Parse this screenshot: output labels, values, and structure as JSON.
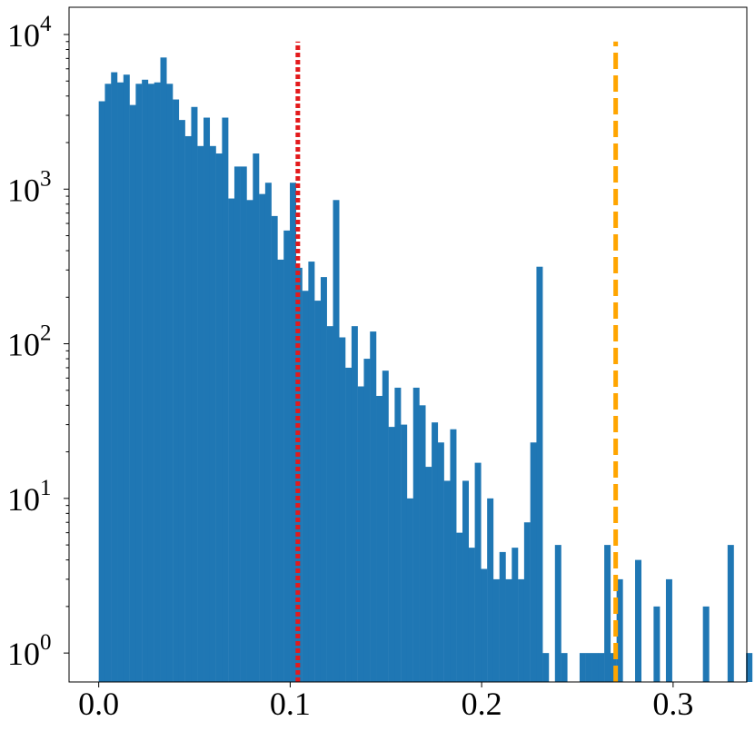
{
  "chart_data": {
    "type": "bar",
    "title": "",
    "xlabel": "",
    "ylabel": "",
    "yscale": "log",
    "ylim": [
      0.65,
      15000
    ],
    "xlim": [
      -0.0155,
      0.3385
    ],
    "grid": false,
    "bar_color": "#1f77b4",
    "bin_width": 0.00322,
    "x_ticks": [
      0.0,
      0.1,
      0.2,
      0.3
    ],
    "x_tick_labels": [
      "0.0",
      "0.1",
      "0.2",
      "0.3"
    ],
    "y_ticks": [
      1,
      10,
      100,
      1000,
      10000
    ],
    "y_tick_labels": [
      {
        "base": "10",
        "exp": "0"
      },
      {
        "base": "10",
        "exp": "1"
      },
      {
        "base": "10",
        "exp": "2"
      },
      {
        "base": "10",
        "exp": "3"
      },
      {
        "base": "10",
        "exp": "4"
      }
    ],
    "counts": [
      3700,
      4800,
      5700,
      4900,
      5500,
      3500,
      4800,
      5100,
      4800,
      4900,
      7100,
      4800,
      3800,
      2800,
      2200,
      3400,
      1900,
      2900,
      1900,
      1700,
      2900,
      870,
      1400,
      1400,
      850,
      1700,
      930,
      1100,
      670,
      350,
      540,
      1100,
      310,
      220,
      340,
      190,
      270,
      130,
      850,
      110,
      70,
      130,
      53,
      80,
      120,
      46,
      67,
      29,
      52,
      30,
      10,
      52,
      40,
      16,
      31,
      23,
      13,
      28,
      6,
      13,
      4.8,
      17,
      3.5,
      10,
      3,
      4.5,
      3,
      4.8,
      3,
      7,
      23,
      315,
      1,
      0,
      5,
      1,
      0,
      0,
      1,
      1,
      1,
      1,
      5,
      1,
      3,
      0,
      0,
      4,
      0,
      0,
      2,
      0,
      3,
      0,
      0,
      0,
      0,
      0,
      2,
      0,
      0,
      0,
      5,
      0,
      0,
      1,
      0,
      0,
      0,
      0
    ],
    "vlines": [
      {
        "x": 0.104,
        "color": "#e31a1c",
        "style": "dotted",
        "top": 9000
      },
      {
        "x": 0.27,
        "color": "#ffa500",
        "style": "dashed",
        "top": 9000
      }
    ]
  }
}
